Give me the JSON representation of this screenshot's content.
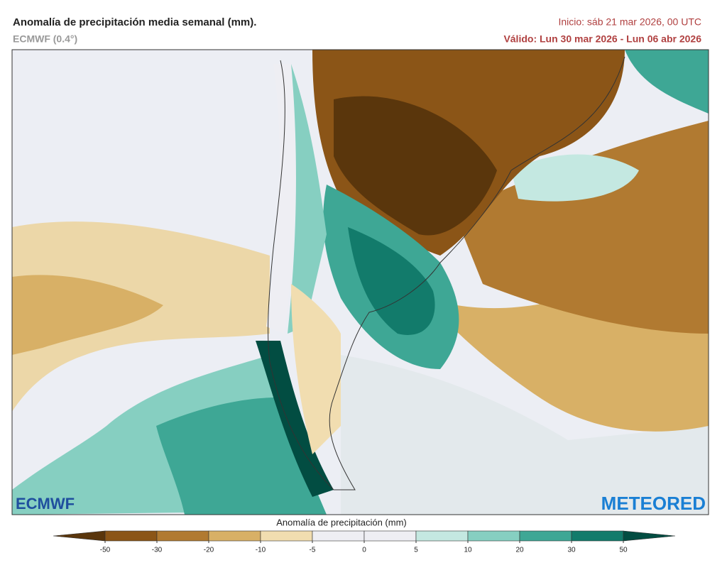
{
  "header": {
    "title": "Anomalía de precipitación media semanal (mm).",
    "model": "ECMWF (0.4°)",
    "init": "Inicio:  sáb 21 mar 2026, 00 UTC",
    "valid": "Válido: Lun 30 mar 2026 - Lun 06 abr 2026"
  },
  "logos": {
    "left": "ECMWF",
    "right": "METEORED"
  },
  "colorbar": {
    "label": "Anomalía de precipitación (mm)",
    "ticks": [
      -50,
      -30,
      -20,
      -10,
      -5,
      0,
      5,
      10,
      20,
      30,
      50
    ],
    "colors": [
      "#5a360c",
      "#8b5517",
      "#b17a31",
      "#d8b066",
      "#f1ddb0",
      "#eeeef3",
      "#eeeef3",
      "#c4e8e1",
      "#86cfc1",
      "#3ea795",
      "#127b6b",
      "#024d42"
    ]
  }
}
